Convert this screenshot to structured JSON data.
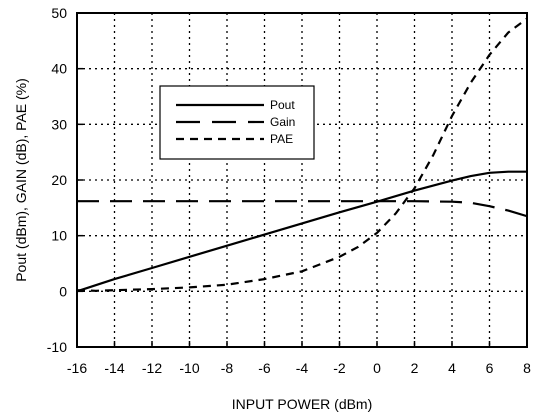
{
  "chart_data": {
    "type": "line",
    "title": "",
    "xlabel": "INPUT POWER (dBm)",
    "ylabel": "Pout (dBm), GAIN (dB), PAE (%)",
    "xlim": [
      -16,
      8
    ],
    "ylim": [
      -10,
      50
    ],
    "xticks": [
      "-16",
      "-14",
      "-12",
      "-10",
      "-8",
      "-6",
      "-4",
      "-2",
      "0",
      "2",
      "4",
      "6",
      "8"
    ],
    "yticks": [
      "-10",
      "0",
      "10",
      "20",
      "30",
      "40",
      "50"
    ],
    "grid": true,
    "grid_style": "dotted",
    "legend_position": "upper-left",
    "series": [
      {
        "name": "Pout",
        "line_style": "solid",
        "x": [
          -16,
          -14,
          -12,
          -10,
          -8,
          -6,
          -4,
          -2,
          0,
          2,
          4,
          5,
          6,
          7,
          8
        ],
        "y": [
          0,
          2.2,
          4.2,
          6.2,
          8.2,
          10.2,
          12.2,
          14.2,
          16.1,
          18.1,
          19.9,
          20.7,
          21.3,
          21.5,
          21.5
        ]
      },
      {
        "name": "Gain",
        "line_style": "dashed",
        "x": [
          -16,
          -10,
          -4,
          0,
          2,
          4,
          5,
          6,
          7,
          8
        ],
        "y": [
          16.2,
          16.2,
          16.2,
          16.2,
          16.2,
          16.1,
          15.9,
          15.3,
          14.5,
          13.5
        ]
      },
      {
        "name": "PAE",
        "line_style": "short-dashed",
        "x": [
          -16,
          -15,
          -14,
          -12,
          -10,
          -8,
          -6,
          -4,
          -2,
          -1,
          0,
          1,
          2,
          3,
          4,
          5,
          6,
          7,
          8
        ],
        "y": [
          0.2,
          0.1,
          0.2,
          0.4,
          0.7,
          1.2,
          2.2,
          3.6,
          6.2,
          8.0,
          10.5,
          14.0,
          18.5,
          24.5,
          31.5,
          37.5,
          42.5,
          46.5,
          49.0
        ]
      }
    ]
  }
}
